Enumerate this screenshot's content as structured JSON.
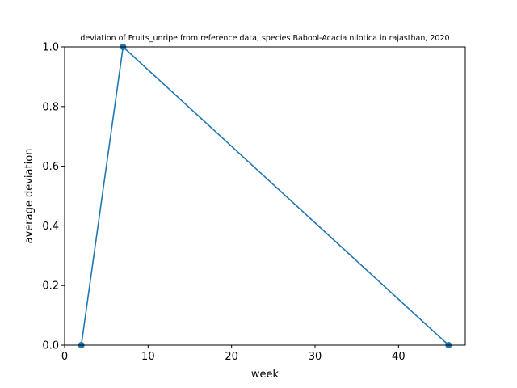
{
  "chart_data": {
    "type": "line",
    "title": "deviation of Fruits_unripe from reference data, species Babool-Acacia nilotica in rajasthan, 2020",
    "xlabel": "week",
    "ylabel": "average deviation",
    "xlim": [
      0,
      48
    ],
    "ylim": [
      0,
      1
    ],
    "xticks": [
      0,
      10,
      20,
      30,
      40
    ],
    "xtick_labels": [
      "0",
      "10",
      "20",
      "30",
      "40"
    ],
    "yticks": [
      0,
      0.2,
      0.4,
      0.6,
      0.8,
      1.0
    ],
    "ytick_labels": [
      "0.0",
      "0.2",
      "0.4",
      "0.6",
      "0.8",
      "1.0"
    ],
    "grid": false,
    "series": [
      {
        "color": "#1f77b4",
        "x": [
          2,
          7,
          46
        ],
        "y": [
          0.0,
          1.0,
          0.0
        ]
      }
    ]
  }
}
